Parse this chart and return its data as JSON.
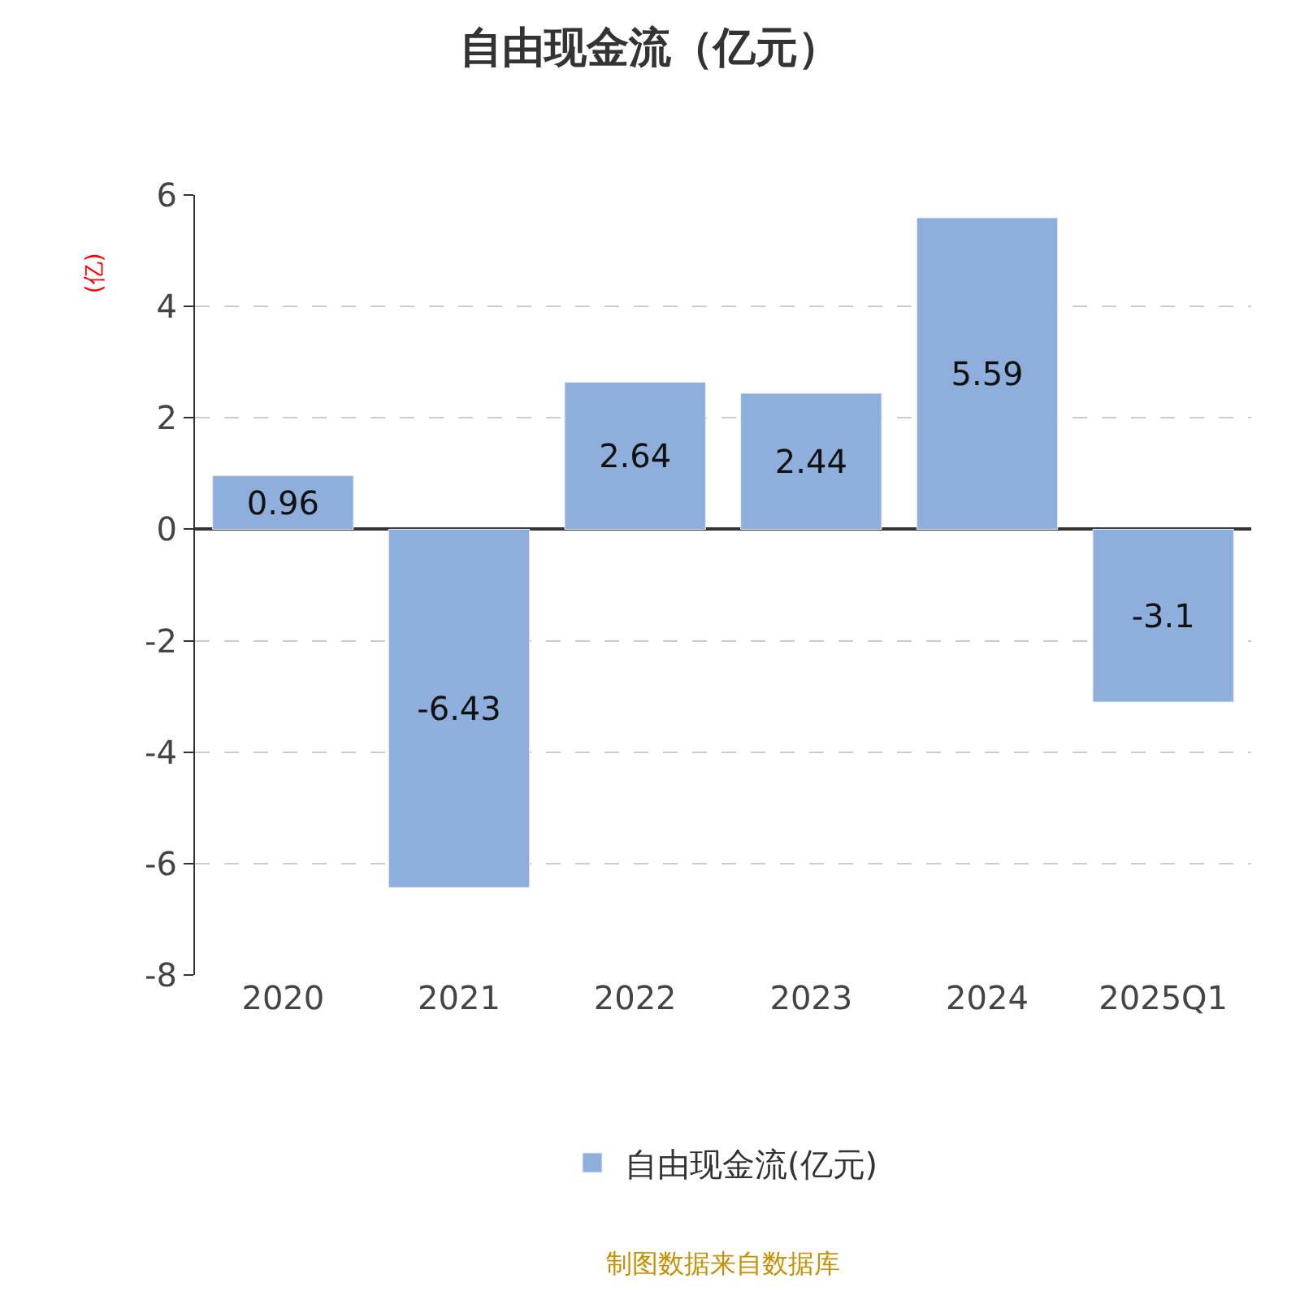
{
  "chart_data": {
    "type": "bar",
    "title": "自由现金流（亿元）",
    "ylabel": "(亿)",
    "categories": [
      "2020",
      "2021",
      "2022",
      "2023",
      "2024",
      "2025Q1"
    ],
    "series": [
      {
        "name": "自由现金流(亿元)",
        "color": "#8eaedb",
        "values": [
          0.96,
          -6.43,
          2.64,
          2.44,
          5.59,
          -3.1
        ]
      }
    ],
    "ylim": [
      -8,
      6
    ],
    "yticks": [
      -8,
      -6,
      -4,
      -2,
      0,
      2,
      4,
      6
    ],
    "grid": "y",
    "legend": "bottom",
    "data_labels": true,
    "annotations": [
      "制图数据来自数据库"
    ]
  }
}
